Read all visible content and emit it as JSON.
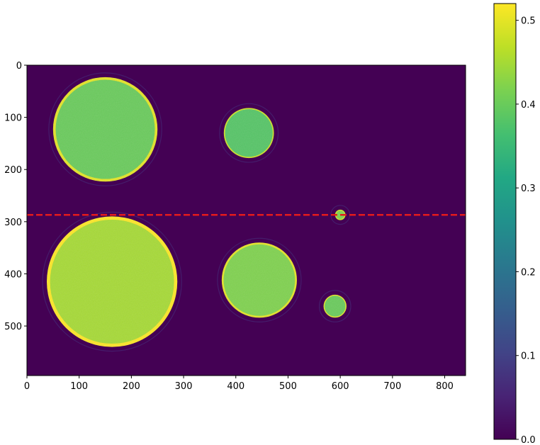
{
  "chart_data": {
    "type": "heatmap",
    "title": "",
    "xlabel": "",
    "ylabel": "",
    "image_width": 840,
    "image_height": 595,
    "xlim": [
      0,
      840
    ],
    "ylim": [
      595,
      0
    ],
    "xticks": [
      0,
      100,
      200,
      300,
      400,
      500,
      600,
      700,
      800
    ],
    "yticks": [
      0,
      100,
      200,
      300,
      400,
      500
    ],
    "background_value": 0.0,
    "disks": [
      {
        "cx": 150,
        "cy": 123,
        "r": 100,
        "value": 0.4,
        "rim_value": 0.5
      },
      {
        "cx": 425,
        "cy": 130,
        "r": 48,
        "value": 0.38,
        "rim_value": 0.48
      },
      {
        "cx": 163,
        "cy": 415,
        "r": 125,
        "value": 0.45,
        "rim_value": 0.52
      },
      {
        "cx": 445,
        "cy": 412,
        "r": 72,
        "value": 0.42,
        "rim_value": 0.5
      },
      {
        "cx": 590,
        "cy": 462,
        "r": 22,
        "value": 0.4,
        "rim_value": 0.5
      },
      {
        "cx": 600,
        "cy": 287,
        "r": 10,
        "value": 0.42,
        "rim_value": 0.48
      }
    ],
    "reference_line": {
      "y": 287,
      "color": "#e31a1c",
      "style": "dashed"
    },
    "colorbar": {
      "colormap": "viridis",
      "min": 0.0,
      "max": 0.52,
      "ticks": [
        0.0,
        0.1,
        0.2,
        0.3,
        0.4,
        0.5
      ],
      "tick_labels": [
        "0.0",
        "0.1",
        "0.2",
        "0.3",
        "0.4",
        "0.5"
      ]
    },
    "grid": false
  }
}
